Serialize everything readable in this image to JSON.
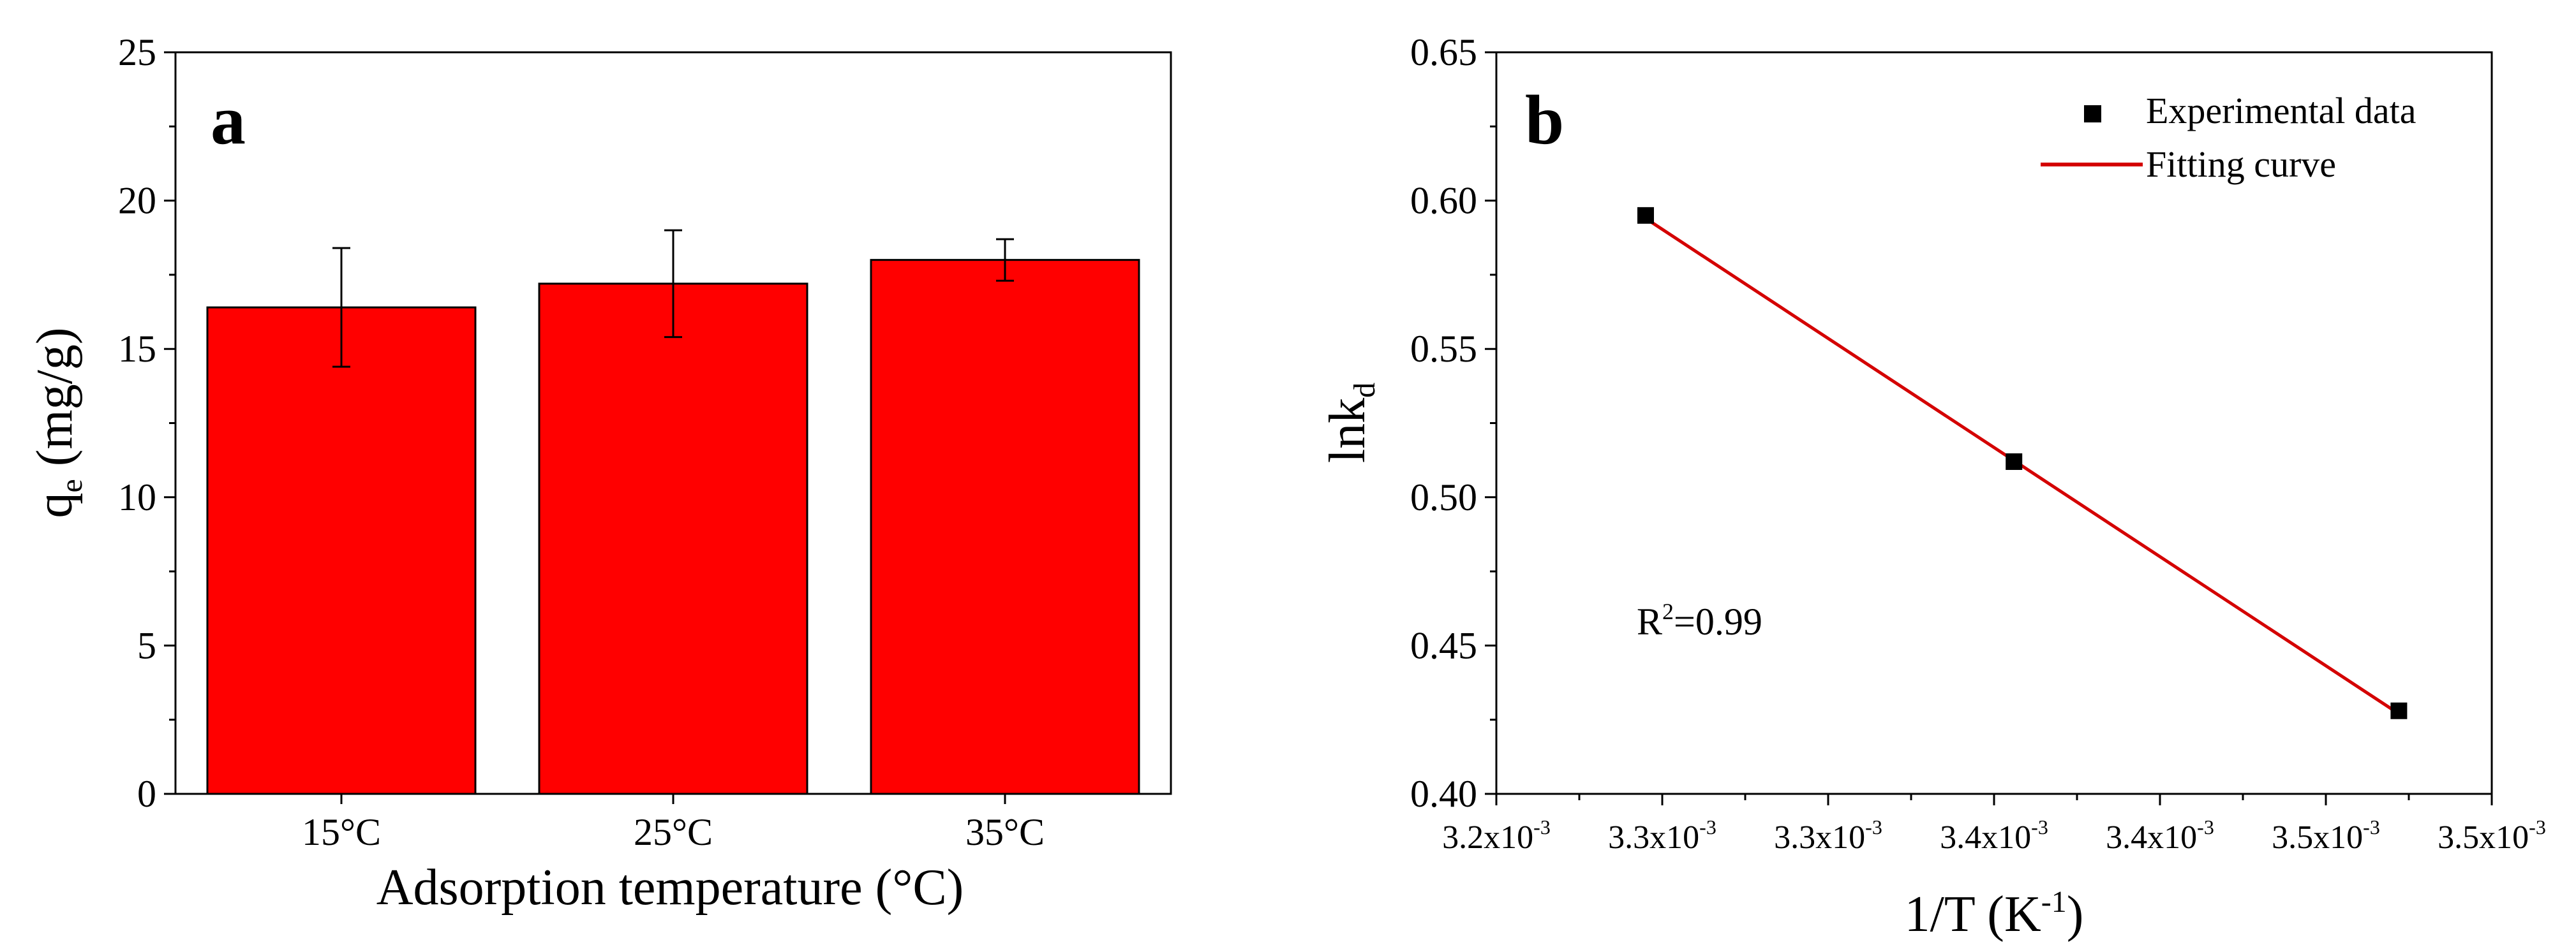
{
  "chart_data": [
    {
      "type": "bar",
      "panel_label": "a",
      "categories": [
        "15°C",
        "25°C",
        "35°C"
      ],
      "values": [
        16.4,
        17.2,
        18.0
      ],
      "error": [
        2.0,
        1.8,
        0.7
      ],
      "ylim": [
        0,
        25
      ],
      "yticks": [
        "0",
        "5",
        "10",
        "15",
        "20",
        "25"
      ],
      "ylabel": {
        "main": "q",
        "sub": "e",
        "rest": " (mg/g)"
      },
      "xlabel": "Adsorption temperature (°C)",
      "bar_color": "#ff0000"
    },
    {
      "type": "scatter",
      "panel_label": "b",
      "points": [
        {
          "x": 0.003245,
          "y": 0.595
        },
        {
          "x": 0.003356,
          "y": 0.512
        },
        {
          "x": 0.003472,
          "y": 0.428
        }
      ],
      "fit": {
        "x": [
          0.003245,
          0.003472
        ],
        "y": [
          0.594,
          0.427
        ]
      },
      "xlim": [
        0.0032,
        0.0035
      ],
      "ylim": [
        0.4,
        0.65
      ],
      "xticks": [
        {
          "v": 0.0032,
          "m": "3.2x10",
          "e": "-3"
        },
        {
          "v": 0.00325,
          "m": "3.3x10",
          "e": "-3"
        },
        {
          "v": 0.0033,
          "m": "3.3x10",
          "e": "-3"
        },
        {
          "v": 0.00335,
          "m": "3.4x10",
          "e": "-3"
        },
        {
          "v": 0.0034,
          "m": "3.4x10",
          "e": "-3"
        },
        {
          "v": 0.00345,
          "m": "3.5x10",
          "e": "-3"
        },
        {
          "v": 0.0035,
          "m": "3.5x10",
          "e": "-3"
        }
      ],
      "yticks": [
        "0.40",
        "0.45",
        "0.50",
        "0.55",
        "0.60",
        "0.65"
      ],
      "xlabel": {
        "main": "1/T (K",
        "sup": "-1",
        "rest": ")"
      },
      "ylabel": {
        "main": "lnk",
        "sub": "d"
      },
      "legend": {
        "position": "top-right",
        "items": [
          "Experimental data",
          "Fitting curve"
        ]
      },
      "annotation": {
        "main": "R",
        "sup": "2",
        "rest": "=0.99"
      },
      "marker_color": "#000000",
      "line_color": "#d40000"
    }
  ]
}
